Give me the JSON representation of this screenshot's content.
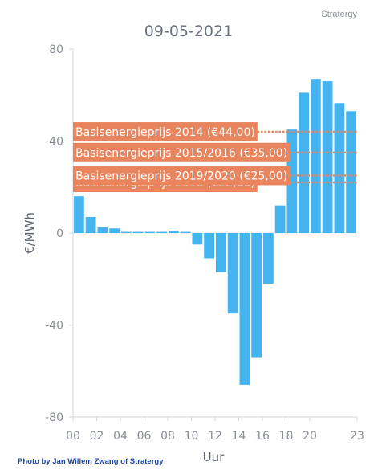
{
  "brand": "Stratergy",
  "credit": "Photo by Jan Willem Zwang of Stratergy",
  "chart_data": {
    "type": "bar",
    "title": "09-05-2021",
    "xlabel": "Uur",
    "ylabel": "€/MWh",
    "ylim": [
      -80,
      80
    ],
    "yticks": [
      80,
      40,
      0,
      -40,
      -80
    ],
    "xtick_labels": [
      "00",
      "02",
      "04",
      "06",
      "08",
      "10",
      "12",
      "14",
      "16",
      "18",
      "20",
      "23"
    ],
    "x": [
      0,
      1,
      2,
      3,
      4,
      5,
      6,
      7,
      8,
      9,
      10,
      11,
      12,
      13,
      14,
      15,
      16,
      17,
      18,
      19,
      20,
      21,
      22,
      23
    ],
    "values": [
      16,
      7,
      2.5,
      2,
      0.5,
      0.5,
      0.5,
      0.5,
      1,
      0.5,
      -5,
      -11,
      -17,
      -35,
      -66,
      -54,
      -22,
      12,
      45,
      61,
      67,
      66,
      56.5,
      53
    ],
    "bar_color": "#45b3ee",
    "annotations": [
      {
        "label": "Basisenergieprijs 2014 (€44,00)",
        "value": 44,
        "color": "#e8855f"
      },
      {
        "label": "Basisenergieprijs 2015/2016 (€35,00)",
        "value": 35,
        "color": "#e8855f"
      },
      {
        "label": "Basisenergieprijs 2019/2020 (€25,00)",
        "value": 25,
        "color": "#e8855f"
      },
      {
        "label": "Basisenergieprijs 2018 (€22,00)",
        "value": 22,
        "color": "#e8855f"
      }
    ]
  }
}
